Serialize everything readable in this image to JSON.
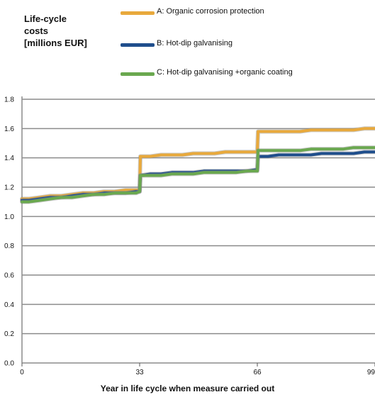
{
  "chart_data": {
    "type": "line",
    "ylabel_lines": [
      "Life-cycle",
      "costs",
      "[millions EUR]"
    ],
    "xlabel": "Year in life cycle when measure carried out",
    "x_ticks": [
      "0",
      "33",
      "66",
      "99"
    ],
    "y_ticks": [
      "0.0",
      "0.2",
      "0.4",
      "0.6",
      "0.8",
      "1.0",
      "1.2",
      "1.4",
      "1.6",
      "1.8"
    ],
    "xlim": [
      0,
      99
    ],
    "ylim": [
      0,
      1.8
    ],
    "grid": true,
    "legend_position": "top",
    "series": [
      {
        "name": "A: Organic corrosion protection",
        "color": "#e8a93c",
        "x": [
          0,
          2,
          5,
          8,
          11,
          14,
          17,
          20,
          23,
          26,
          29,
          32,
          33,
          33.2,
          36,
          39,
          42,
          45,
          48,
          51,
          54,
          57,
          60,
          63,
          65.8,
          66,
          66.2,
          69,
          72,
          75,
          78,
          81,
          84,
          87,
          90,
          93,
          96,
          99
        ],
        "y": [
          1.12,
          1.12,
          1.13,
          1.14,
          1.14,
          1.15,
          1.16,
          1.16,
          1.17,
          1.17,
          1.18,
          1.18,
          1.18,
          1.41,
          1.41,
          1.42,
          1.42,
          1.42,
          1.43,
          1.43,
          1.43,
          1.44,
          1.44,
          1.44,
          1.44,
          1.45,
          1.58,
          1.58,
          1.58,
          1.58,
          1.58,
          1.59,
          1.59,
          1.59,
          1.59,
          1.59,
          1.6,
          1.6
        ]
      },
      {
        "name": "B: Hot-dip galvanising",
        "color": "#1f4e8c",
        "x": [
          0,
          2,
          5,
          8,
          11,
          14,
          17,
          20,
          23,
          26,
          29,
          32,
          33,
          33.2,
          36,
          39,
          42,
          45,
          48,
          51,
          54,
          57,
          60,
          63,
          65.8,
          66,
          66.2,
          69,
          72,
          75,
          78,
          81,
          84,
          87,
          90,
          93,
          96,
          99
        ],
        "y": [
          1.11,
          1.11,
          1.12,
          1.13,
          1.13,
          1.14,
          1.15,
          1.15,
          1.16,
          1.16,
          1.16,
          1.17,
          1.17,
          1.28,
          1.29,
          1.29,
          1.3,
          1.3,
          1.3,
          1.31,
          1.31,
          1.31,
          1.31,
          1.31,
          1.32,
          1.32,
          1.41,
          1.41,
          1.42,
          1.42,
          1.42,
          1.42,
          1.43,
          1.43,
          1.43,
          1.43,
          1.44,
          1.44
        ]
      },
      {
        "name": "C: Hot-dip galvanising +organic coating",
        "color": "#6aa84f",
        "x": [
          0,
          2,
          5,
          8,
          11,
          14,
          17,
          20,
          23,
          26,
          29,
          32,
          33,
          33.2,
          36,
          39,
          42,
          45,
          48,
          51,
          54,
          57,
          60,
          63,
          65.8,
          66,
          66.2,
          69,
          72,
          75,
          78,
          81,
          84,
          87,
          90,
          93,
          96,
          99
        ],
        "y": [
          1.1,
          1.1,
          1.11,
          1.12,
          1.13,
          1.13,
          1.14,
          1.15,
          1.15,
          1.16,
          1.16,
          1.16,
          1.17,
          1.28,
          1.28,
          1.28,
          1.29,
          1.29,
          1.29,
          1.3,
          1.3,
          1.3,
          1.3,
          1.31,
          1.31,
          1.31,
          1.45,
          1.45,
          1.45,
          1.45,
          1.45,
          1.46,
          1.46,
          1.46,
          1.46,
          1.47,
          1.47,
          1.47
        ]
      }
    ]
  }
}
